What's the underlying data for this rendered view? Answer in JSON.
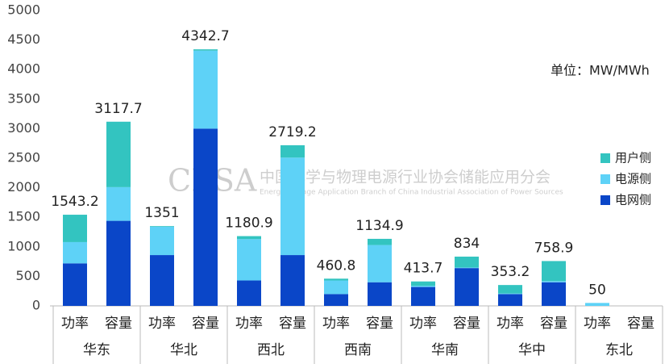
{
  "chart_data": {
    "type": "bar",
    "stacked": true,
    "unit_note": "单位：MW/MWh",
    "watermark": {
      "logo": "CESA",
      "cn": "中国化学与物理电源行业协会储能应用分会",
      "en": "Energy Storage Application Branch of China Industrial Association of Power Sources"
    },
    "groups": [
      "华东",
      "华北",
      "西北",
      "西南",
      "华南",
      "华中",
      "东北"
    ],
    "categories": [
      "功率",
      "容量",
      "功率",
      "容量",
      "功率",
      "容量",
      "功率",
      "容量",
      "功率",
      "容量",
      "功率",
      "容量",
      "功率",
      "容量"
    ],
    "series": [
      {
        "name": "电网侧",
        "color": "#0a46c8",
        "values": [
          720,
          1440,
          860,
          3000,
          430,
          860,
          200,
          400,
          320,
          640,
          200,
          400,
          0,
          null
        ]
      },
      {
        "name": "电源侧",
        "color": "#5ed2f7",
        "values": [
          360,
          570,
          480,
          1320,
          700,
          1650,
          230,
          630,
          20,
          10,
          10,
          20,
          50,
          null
        ]
      },
      {
        "name": "用户侧",
        "color": "#33c4c0",
        "values": [
          463.2,
          1107.7,
          11,
          22.7,
          50.9,
          209.2,
          30.8,
          104.9,
          73.7,
          184,
          143.2,
          338.9,
          0,
          null
        ]
      }
    ],
    "totals": [
      1543.2,
      3117.7,
      1351,
      4342.7,
      1180.9,
      2719.2,
      460.8,
      1134.9,
      413.7,
      834,
      353.2,
      758.9,
      50,
      null
    ],
    "ylim": [
      0,
      5000
    ],
    "yticks": [
      0,
      500,
      1000,
      1500,
      2000,
      2500,
      3000,
      3500,
      4000,
      4500,
      5000
    ],
    "grid": false,
    "legend": "right"
  }
}
